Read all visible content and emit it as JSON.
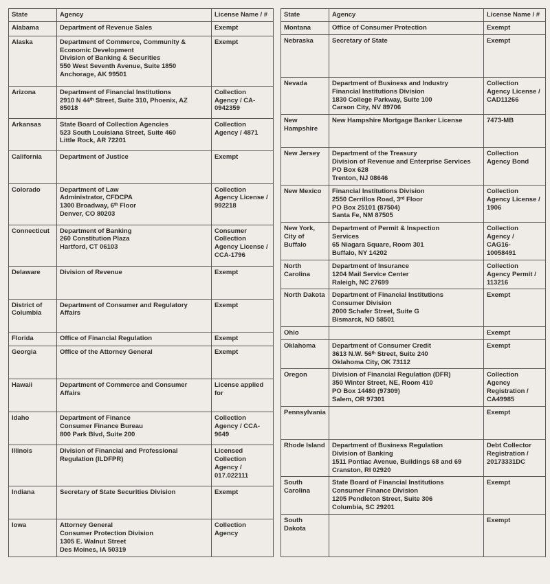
{
  "headers": {
    "state": "State",
    "agency": "Agency",
    "license": "License Name / #"
  },
  "left": [
    {
      "state": "Alabama",
      "agency": [
        "Department of Revenue Sales"
      ],
      "license": [
        "Exempt"
      ]
    },
    {
      "state": "Alaska",
      "agency": [
        "Department of Commerce, Community &",
        "Economic Development",
        "Division of Banking & Securities",
        "550 West Seventh Avenue, Suite 1850",
        "Anchorage, AK 99501"
      ],
      "license": [
        "Exempt"
      ]
    },
    {
      "state": "Arizona",
      "agency": [
        "Department of Financial Institutions",
        "2910 N 44ᵗʰ Street, Suite 310, Phoenix, AZ",
        "85018"
      ],
      "license": [
        "Collection",
        "Agency / CA-",
        "0942359"
      ]
    },
    {
      "state": "Arkansas",
      "agency": [
        "State Board of Collection Agencies",
        "523 South Louisiana Street, Suite 460",
        "Little Rock, AR 72201"
      ],
      "license": [
        "Collection",
        "Agency / 4871"
      ]
    },
    {
      "state": "California",
      "agency": [
        "Department of Justice"
      ],
      "license": [
        "Exempt"
      ],
      "cls": "tall"
    },
    {
      "state": "Colorado",
      "agency": [
        "Department of Law",
        "Administrator, CFDCPA",
        "1300 Broadway, 6ᵗʰ Floor",
        "Denver, CO 80203"
      ],
      "license": [
        "Collection",
        "Agency License /",
        "992218"
      ]
    },
    {
      "state": "Connecticut",
      "agency": [
        "Department of Banking",
        "260 Constitution Plaza",
        "Hartford, CT 06103"
      ],
      "license": [
        "Consumer",
        "Collection",
        "Agency License /",
        "CCA-1796"
      ]
    },
    {
      "state": "Delaware",
      "agency": [
        "Division of Revenue"
      ],
      "license": [
        "Exempt"
      ],
      "cls": "tall"
    },
    {
      "state": "District of Columbia",
      "agency": [
        "Department of Consumer and Regulatory",
        "Affairs"
      ],
      "license": [
        "Exempt"
      ],
      "cls": "tall"
    },
    {
      "state": "Florida",
      "agency": [
        "Office of Financial Regulation"
      ],
      "license": [
        "Exempt"
      ]
    },
    {
      "state": "Georgia",
      "agency": [
        "Office of the Attorney General"
      ],
      "license": [
        "Exempt"
      ],
      "cls": "tall"
    },
    {
      "state": "Hawaii",
      "agency": [
        "Department of Commerce and Consumer",
        "Affairs"
      ],
      "license": [
        "License applied",
        "for"
      ],
      "cls": "tall"
    },
    {
      "state": "Idaho",
      "agency": [
        "Department of Finance",
        "Consumer Finance Bureau",
        "800 Park Blvd, Suite 200"
      ],
      "license": [
        "Collection",
        "Agency / CCA-",
        "9649"
      ],
      "cls": "tall"
    },
    {
      "state": "Illinois",
      "agency": [
        "Division of Financial and Professional",
        "Regulation (ILDFPR)"
      ],
      "license": [
        "Licensed",
        "Collection",
        "Agency /",
        "017.022111"
      ]
    },
    {
      "state": "Indiana",
      "agency": [
        "Secretary of State Securities Division"
      ],
      "license": [
        "Exempt"
      ],
      "cls": "tall"
    },
    {
      "state": "Iowa",
      "agency": [
        "Attorney General",
        "Consumer Protection Division",
        "1305 E. Walnut Street",
        "Des Moines, IA 50319"
      ],
      "license": [
        "Collection",
        "Agency"
      ],
      "cls": "tall"
    }
  ],
  "right": [
    {
      "state": "Montana",
      "agency": [
        "Office of Consumer Protection"
      ],
      "license": [
        "Exempt"
      ]
    },
    {
      "state": "Nebraska",
      "agency": [
        "Secretary of State"
      ],
      "license": [
        "Exempt"
      ],
      "cls": "xtall"
    },
    {
      "state": "Nevada",
      "agency": [
        "Department of Business and Industry",
        "Financial Institutions Division",
        "1830 College Parkway, Suite 100",
        "Carson City, NV 89706"
      ],
      "license": [
        "Collection",
        "Agency License /",
        "CAD11266"
      ]
    },
    {
      "state": "New Hampshire",
      "agency": [
        "New Hampshire Mortgage Banker License"
      ],
      "license": [
        "7473-MB"
      ],
      "cls": "tall"
    },
    {
      "state": "New Jersey",
      "agency": [
        "Department of the Treasury",
        "Division of Revenue and Enterprise Services",
        "PO Box 628",
        "Trenton, NJ 08646"
      ],
      "license": [
        "Collection",
        "Agency Bond"
      ]
    },
    {
      "state": "New Mexico",
      "agency": [
        "Financial Institutions Division",
        "2550 Cerrillos Road, 3ʳᵈ Floor",
        "PO Box 25101 (87504)",
        "Santa Fe, NM 87505"
      ],
      "license": [
        "Collection",
        "Agency License /",
        "1906"
      ]
    },
    {
      "state": "New York, City of Buffalo",
      "agency": [
        "Department of Permit & Inspection",
        "Services",
        "65 Niagara Square, Room 301",
        "Buffalo, NY 14202"
      ],
      "license": [
        "Collection",
        "Agency /",
        "CAG16-",
        "10058491"
      ]
    },
    {
      "state": "North Carolina",
      "agency": [
        "Department of Insurance",
        "1204 Mail Service Center",
        "Raleigh, NC 27699"
      ],
      "license": [
        "Collection",
        "Agency Permit /",
        "113216"
      ]
    },
    {
      "state": "North Dakota",
      "agency": [
        "Department of Financial Institutions",
        "Consumer Division",
        "2000 Schafer Street, Suite G",
        "Bismarck, ND 58501"
      ],
      "license": [
        "Exempt"
      ]
    },
    {
      "state": "Ohio",
      "agency": [
        ""
      ],
      "license": [
        "Exempt"
      ]
    },
    {
      "state": "Oklahoma",
      "agency": [
        "Department of Consumer Credit",
        "3613 N.W. 56ᵗʰ Street, Suite 240",
        "Oklahoma City, OK 73112"
      ],
      "license": [
        "Exempt"
      ]
    },
    {
      "state": "Oregon",
      "agency": [
        "Division of Financial Regulation (DFR)",
        "350 Winter Street, NE, Room 410",
        "PO Box 14480 (97309)",
        "Salem, OR 97301"
      ],
      "license": [
        "Collection",
        "Agency",
        "Registration /",
        "CA49985"
      ]
    },
    {
      "state": "Pennsylvania",
      "agency": [
        ""
      ],
      "license": [
        "Exempt"
      ],
      "cls": "tall"
    },
    {
      "state": "Rhode Island",
      "agency": [
        "Department of Business Regulation",
        "Division of Banking",
        "1511 Pontiac Avenue, Buildings 68 and 69",
        "Cranston, RI 02920"
      ],
      "license": [
        "Debt Collector",
        "Registration /",
        "20173331DC"
      ]
    },
    {
      "state": "South Carolina",
      "agency": [
        "State Board of Financial Institutions",
        "Consumer Finance Division",
        "1205 Pendleton Street, Suite 306",
        "Columbia, SC 29201"
      ],
      "license": [
        "Exempt"
      ]
    },
    {
      "state": "South Dakota",
      "agency": [
        ""
      ],
      "license": [
        "Exempt"
      ],
      "cls": "xtall"
    }
  ]
}
